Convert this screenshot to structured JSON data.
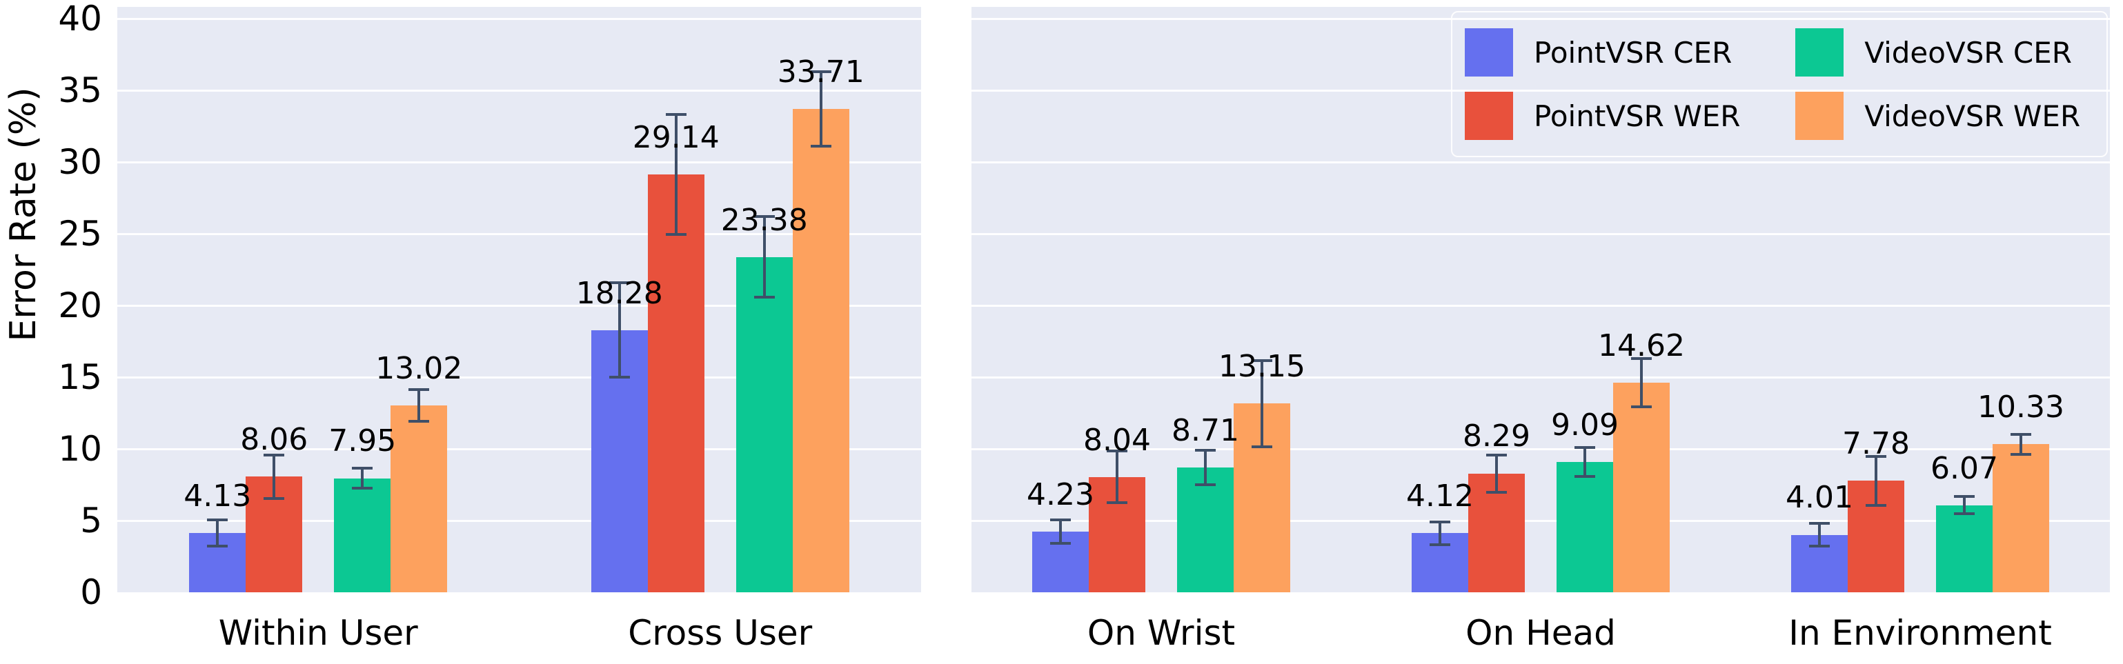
{
  "figure": {
    "ylabel": "Error Rate (%)",
    "background_color": "#ffffff",
    "panel_background": "#e7eaf4",
    "grid_color": "#ffffff",
    "errorbar_color": "#3f4f68",
    "text_color": "#000000"
  },
  "chart_data": {
    "type": "bar",
    "title": "",
    "xlabel": "",
    "ylabel": "Error Rate (%)",
    "ylim": [
      0,
      40
    ],
    "yticks": [
      0,
      5,
      10,
      15,
      20,
      25,
      30,
      35,
      40
    ],
    "grid": true,
    "legend_position": "upper-right",
    "value_label_decimals": 2,
    "panels": [
      {
        "name": "left-panel",
        "categories": [
          "Within User",
          "Cross User"
        ],
        "series": [
          {
            "name": "PointVSR CER",
            "color": "#6570ef",
            "values": [
              4.13,
              18.28
            ],
            "errors": [
              0.9,
              3.3
            ]
          },
          {
            "name": "PointVSR WER",
            "color": "#e8513c",
            "values": [
              8.06,
              29.14
            ],
            "errors": [
              1.5,
              4.2
            ]
          },
          {
            "name": "VideoVSR CER",
            "color": "#0cc893",
            "values": [
              7.95,
              23.38
            ],
            "errors": [
              0.7,
              2.8
            ]
          },
          {
            "name": "VideoVSR WER",
            "color": "#fda15e",
            "values": [
              13.02,
              33.71
            ],
            "errors": [
              1.1,
              2.6
            ]
          }
        ]
      },
      {
        "name": "right-panel",
        "categories": [
          "On Wrist",
          "On Head",
          "In Environment"
        ],
        "series": [
          {
            "name": "PointVSR CER",
            "color": "#6570ef",
            "values": [
              4.23,
              4.12,
              4.01
            ],
            "errors": [
              0.8,
              0.8,
              0.8
            ]
          },
          {
            "name": "PointVSR WER",
            "color": "#e8513c",
            "values": [
              8.04,
              8.29,
              7.78
            ],
            "errors": [
              1.8,
              1.3,
              1.7
            ]
          },
          {
            "name": "VideoVSR CER",
            "color": "#0cc893",
            "values": [
              8.71,
              9.09,
              6.07
            ],
            "errors": [
              1.2,
              1.0,
              0.6
            ]
          },
          {
            "name": "VideoVSR WER",
            "color": "#fda15e",
            "values": [
              13.15,
              14.62,
              10.33
            ],
            "errors": [
              3.0,
              1.7,
              0.7
            ]
          }
        ]
      }
    ],
    "legend": [
      {
        "label": "PointVSR CER",
        "color": "#6570ef"
      },
      {
        "label": "PointVSR WER",
        "color": "#e8513c"
      },
      {
        "label": "VideoVSR CER",
        "color": "#0cc893"
      },
      {
        "label": "VideoVSR WER",
        "color": "#fda15e"
      }
    ]
  }
}
